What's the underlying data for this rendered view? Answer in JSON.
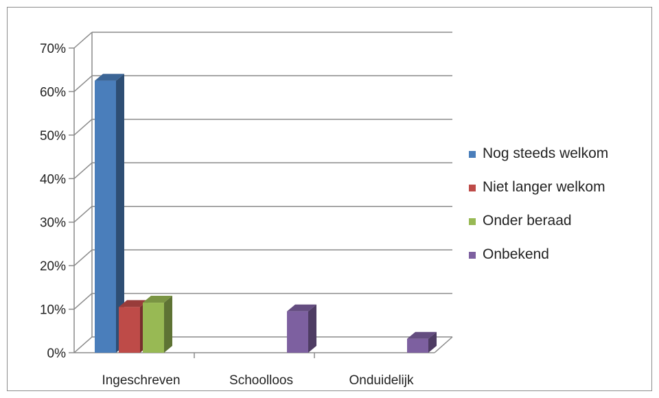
{
  "chart_data": {
    "type": "bar",
    "three_d": true,
    "categories": [
      "Ingeschreven",
      "Schoolloos",
      "Onduidelijk"
    ],
    "series": [
      {
        "name": "Nog steeds welkom",
        "color": "#4a7ebb",
        "values": [
          62.5,
          null,
          null
        ]
      },
      {
        "name": "Niet langer welkom",
        "color": "#be4b48",
        "values": [
          10.5,
          null,
          null
        ]
      },
      {
        "name": "Onder beraad",
        "color": "#98b954",
        "values": [
          11.5,
          null,
          null
        ]
      },
      {
        "name": "Onbekend",
        "color": "#7d60a0",
        "values": [
          null,
          9.5,
          3.2
        ]
      }
    ],
    "y_ticks": [
      "0%",
      "10%",
      "20%",
      "30%",
      "40%",
      "50%",
      "60%",
      "70%"
    ],
    "ylim": [
      0,
      70
    ],
    "grid": true,
    "legend_position": "right"
  }
}
